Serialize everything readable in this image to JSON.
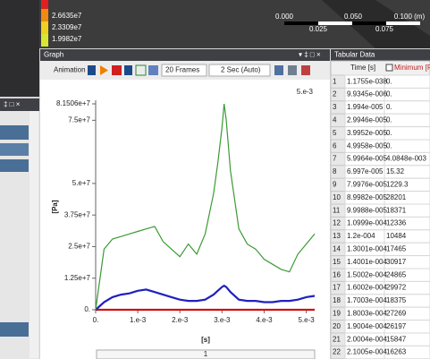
{
  "ui": {
    "legend_labels": [
      "2.6635e7",
      "2.3309e7",
      "1.9982e7"
    ],
    "scale_labels_top": [
      "0.000",
      "0.050",
      "0.100 (m)"
    ],
    "scale_labels_bottom": [
      "0.025",
      "0.075"
    ],
    "graph_title": "Graph",
    "animation": "Animation",
    "frames": "20 Frames",
    "duration": "2 Sec (Auto)",
    "page_input": "1"
  },
  "chart_data": {
    "type": "line",
    "ylabel": "[Pa]",
    "xlabel": "[s]",
    "corner_label": "5.e-3",
    "xlim": [
      0,
      0.0052
    ],
    "ylim": [
      0,
      81506000
    ],
    "xticks": [
      {
        "value": 0,
        "label": "0."
      },
      {
        "value": 0.001,
        "label": "1.e-3"
      },
      {
        "value": 0.002,
        "label": "2.e-3"
      },
      {
        "value": 0.003,
        "label": "3.e-3"
      },
      {
        "value": 0.004,
        "label": "4.e-3"
      },
      {
        "value": 0.005,
        "label": "5.e-3"
      }
    ],
    "yticks": [
      {
        "value": 0,
        "label": "0."
      },
      {
        "value": 12500000,
        "label": "1.25e+7"
      },
      {
        "value": 25000000,
        "label": "2.5e+7"
      },
      {
        "value": 37500000,
        "label": "3.75e+7"
      },
      {
        "value": 50000000,
        "label": "5.e+7"
      },
      {
        "value": 75000000,
        "label": "7.5e+7"
      },
      {
        "value": 81506000,
        "label": "8.1506e+7"
      }
    ],
    "x": [
      0,
      0.0002,
      0.0004,
      0.0006,
      0.0008,
      0.001,
      0.0012,
      0.0014,
      0.0016,
      0.0018,
      0.002,
      0.0022,
      0.0024,
      0.0026,
      0.0028,
      0.0029,
      0.003,
      0.00305,
      0.0031,
      0.0032,
      0.0034,
      0.0036,
      0.0038,
      0.004,
      0.0042,
      0.0044,
      0.0046,
      0.0048,
      0.005,
      0.0052
    ],
    "series": [
      {
        "color": "#3a9a34",
        "values": [
          0,
          24000000,
          28000000,
          29000000,
          30000000,
          31000000,
          32000000,
          33000000,
          27000000,
          24000000,
          21000000,
          26000000,
          22000000,
          30000000,
          46000000,
          58000000,
          72000000,
          81500000,
          75000000,
          55000000,
          32000000,
          26000000,
          24000000,
          20000000,
          18000000,
          16000000,
          15000000,
          22000000,
          26000000,
          30000000
        ]
      },
      {
        "color": "#2020c0",
        "values": [
          0,
          3000000,
          5000000,
          6000000,
          6500000,
          7500000,
          8000000,
          7000000,
          6000000,
          5000000,
          4000000,
          3500000,
          3500000,
          4000000,
          6000000,
          7500000,
          9000000,
          9500000,
          9000000,
          7000000,
          4000000,
          3500000,
          3500000,
          3000000,
          3000000,
          3500000,
          3500000,
          4000000,
          5000000,
          5500000
        ]
      },
      {
        "color": "#d01010",
        "values": [
          0,
          0,
          0,
          0,
          0,
          0,
          0,
          0,
          0,
          0,
          0,
          0,
          0,
          0,
          0,
          0,
          0,
          0,
          0,
          0,
          0,
          0,
          0,
          0,
          0,
          0,
          0,
          0,
          0,
          0
        ]
      }
    ]
  },
  "table": {
    "title": "Tabular Data",
    "headers": [
      "Time [s]",
      "Minimum [P"
    ],
    "rows": [
      [
        "1",
        "1.1755e-038",
        "0."
      ],
      [
        "2",
        "9.9345e-006",
        "0."
      ],
      [
        "3",
        "1.994e-005",
        "0."
      ],
      [
        "4",
        "2.9946e-005",
        "0."
      ],
      [
        "5",
        "3.9952e-005",
        "0."
      ],
      [
        "6",
        "4.9958e-005",
        "0."
      ],
      [
        "7",
        "5.9964e-005",
        "4.0848e-003"
      ],
      [
        "8",
        "6.997e-005",
        "15.32"
      ],
      [
        "9",
        "7.9976e-005",
        "1229.3"
      ],
      [
        "10",
        "8.9982e-005",
        "28201"
      ],
      [
        "11",
        "9.9988e-005",
        "18371"
      ],
      [
        "12",
        "1.0999e-004",
        "12336"
      ],
      [
        "13",
        "1.2e-004",
        "10484"
      ],
      [
        "14",
        "1.3001e-004",
        "17465"
      ],
      [
        "15",
        "1.4001e-004",
        "30917"
      ],
      [
        "16",
        "1.5002e-004",
        "24865"
      ],
      [
        "17",
        "1.6002e-004",
        "29972"
      ],
      [
        "18",
        "1.7003e-004",
        "18375"
      ],
      [
        "19",
        "1.8003e-004",
        "27269"
      ],
      [
        "20",
        "1.9004e-004",
        "26197"
      ],
      [
        "21",
        "2.0004e-004",
        "15847"
      ],
      [
        "22",
        "2.1005e-004",
        "16263"
      ]
    ]
  }
}
